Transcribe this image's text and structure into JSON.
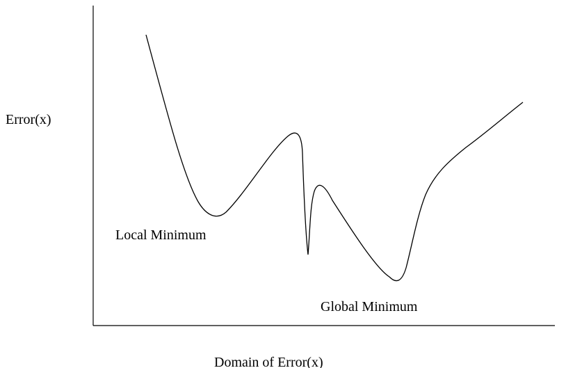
{
  "labels": {
    "y_axis": "Error(x)",
    "x_axis": "Domain of Error(x)",
    "local_minimum": "Local Minimum",
    "global_minimum": "Global Minimum"
  },
  "colors": {
    "line": "#000000",
    "background": "#ffffff"
  }
}
